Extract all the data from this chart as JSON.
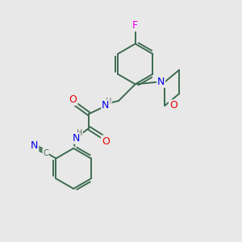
{
  "background_color": "#e8e8e8",
  "bond_color": "#3d6b50",
  "atom_colors": {
    "N": "#0000ee",
    "O": "#ee0000",
    "F": "#ee00ee",
    "C_label": "#3d6b50",
    "H": "#666666"
  },
  "font_size": 8,
  "line_width": 1.4,
  "fig_size": [
    3.0,
    3.0
  ],
  "dpi": 100
}
